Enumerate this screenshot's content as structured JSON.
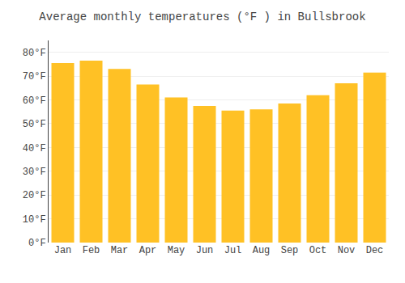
{
  "chart_data": {
    "type": "bar",
    "title": "Average monthly temperatures (°F ) in Bullsbrook",
    "categories": [
      "Jan",
      "Feb",
      "Mar",
      "Apr",
      "May",
      "Jun",
      "Jul",
      "Aug",
      "Sep",
      "Oct",
      "Nov",
      "Dec"
    ],
    "values": [
      75.5,
      76.5,
      73.0,
      66.5,
      61.0,
      57.5,
      55.5,
      56.0,
      58.5,
      62.0,
      67.0,
      71.5
    ],
    "color": "#FFC125",
    "ylim": [
      0,
      85
    ],
    "yticks": [
      {
        "value": 0,
        "label": "0°F"
      },
      {
        "value": 10,
        "label": "10°F"
      },
      {
        "value": 20,
        "label": "20°F"
      },
      {
        "value": 30,
        "label": "30°F"
      },
      {
        "value": 40,
        "label": "40°F"
      },
      {
        "value": 50,
        "label": "50°F"
      },
      {
        "value": 60,
        "label": "60°F"
      },
      {
        "value": 70,
        "label": "70°F"
      },
      {
        "value": 80,
        "label": "80°F"
      }
    ],
    "grid": true
  }
}
